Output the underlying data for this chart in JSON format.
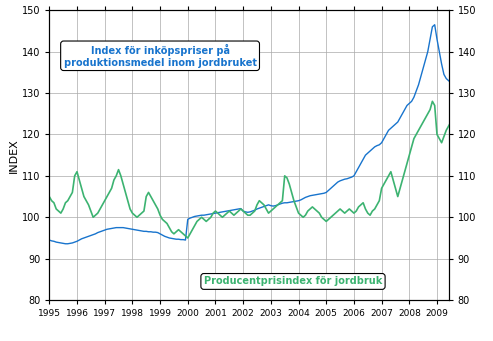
{
  "ylabel_left": "INDEX",
  "ylim": [
    80,
    150
  ],
  "xlim_start": 1995.0,
  "xlim_end": 2009.42,
  "yticks": [
    80,
    90,
    100,
    110,
    120,
    130,
    140,
    150
  ],
  "xtick_years": [
    1995,
    1996,
    1997,
    1998,
    1999,
    2000,
    2001,
    2002,
    2003,
    2004,
    2005,
    2006,
    2007,
    2008,
    2009
  ],
  "blue_color": "#1874CD",
  "green_color": "#3CB371",
  "background_color": "#FFFFFF",
  "grid_color": "#AAAAAA",
  "annotation_blue": "Index för inköpspriser på\nproduktionsmedel inom jordbruket",
  "annotation_green": "Producentprisindex för jordbruk",
  "blue_data": [
    94.5,
    94.3,
    94.2,
    94.0,
    93.9,
    93.8,
    93.7,
    93.6,
    93.6,
    93.7,
    93.8,
    94.0,
    94.2,
    94.5,
    94.8,
    95.0,
    95.2,
    95.4,
    95.6,
    95.8,
    96.0,
    96.3,
    96.5,
    96.7,
    96.9,
    97.1,
    97.2,
    97.3,
    97.4,
    97.5,
    97.5,
    97.5,
    97.5,
    97.4,
    97.3,
    97.2,
    97.1,
    97.0,
    96.9,
    96.8,
    96.7,
    96.6,
    96.6,
    96.5,
    96.5,
    96.4,
    96.4,
    96.3,
    96.0,
    95.7,
    95.4,
    95.2,
    95.0,
    94.9,
    94.8,
    94.7,
    94.7,
    94.6,
    94.6,
    94.5,
    99.5,
    99.8,
    100.0,
    100.2,
    100.3,
    100.4,
    100.5,
    100.5,
    100.6,
    100.7,
    100.8,
    100.9,
    101.0,
    101.1,
    101.2,
    101.3,
    101.4,
    101.5,
    101.6,
    101.7,
    101.8,
    101.9,
    102.0,
    102.1,
    101.5,
    101.3,
    101.2,
    101.3,
    101.5,
    101.7,
    102.0,
    102.2,
    102.4,
    102.6,
    102.8,
    103.0,
    102.8,
    102.7,
    102.8,
    103.0,
    103.2,
    103.4,
    103.5,
    103.5,
    103.6,
    103.7,
    103.8,
    103.9,
    104.0,
    104.2,
    104.5,
    104.8,
    105.0,
    105.2,
    105.3,
    105.4,
    105.5,
    105.6,
    105.7,
    105.8,
    106.0,
    106.5,
    107.0,
    107.5,
    108.0,
    108.5,
    108.8,
    109.0,
    109.2,
    109.3,
    109.5,
    109.7,
    110.0,
    111.0,
    112.0,
    113.0,
    114.0,
    115.0,
    115.5,
    116.0,
    116.5,
    117.0,
    117.3,
    117.5,
    118.0,
    119.0,
    120.0,
    121.0,
    121.5,
    122.0,
    122.5,
    123.0,
    124.0,
    125.0,
    126.0,
    127.0,
    127.5,
    128.0,
    129.0,
    130.5,
    132.0,
    134.0,
    136.0,
    138.0,
    140.0,
    143.0,
    146.0,
    146.5,
    143.0,
    140.0,
    137.0,
    134.5,
    133.5,
    133.0,
    132.5,
    132.0,
    131.5,
    131.0,
    130.5,
    130.0
  ],
  "green_data": [
    105.0,
    104.0,
    103.5,
    102.0,
    101.5,
    101.0,
    102.0,
    103.5,
    104.0,
    105.0,
    106.0,
    110.0,
    111.0,
    109.0,
    107.0,
    105.0,
    104.0,
    103.0,
    101.5,
    100.0,
    100.5,
    101.0,
    102.0,
    103.0,
    104.0,
    105.0,
    106.0,
    107.0,
    109.0,
    110.0,
    111.5,
    110.0,
    108.0,
    106.0,
    104.0,
    102.0,
    101.0,
    100.5,
    100.0,
    100.5,
    101.0,
    101.5,
    105.0,
    106.0,
    105.0,
    104.0,
    103.0,
    102.0,
    100.5,
    99.5,
    99.0,
    98.5,
    97.5,
    96.5,
    96.0,
    96.5,
    97.0,
    96.5,
    96.0,
    95.5,
    95.0,
    96.0,
    97.0,
    98.0,
    99.0,
    99.5,
    100.0,
    99.5,
    99.0,
    99.5,
    100.0,
    101.0,
    101.5,
    101.0,
    100.5,
    100.0,
    100.5,
    101.0,
    101.5,
    101.0,
    100.5,
    101.0,
    101.5,
    102.0,
    101.5,
    101.0,
    100.5,
    100.5,
    101.0,
    101.5,
    103.0,
    104.0,
    103.5,
    103.0,
    102.0,
    101.0,
    101.5,
    102.0,
    102.5,
    103.0,
    103.5,
    104.0,
    110.0,
    109.5,
    108.0,
    106.0,
    104.0,
    102.5,
    101.0,
    100.5,
    100.0,
    100.5,
    101.5,
    102.0,
    102.5,
    102.0,
    101.5,
    101.0,
    100.0,
    99.5,
    99.0,
    99.5,
    100.0,
    100.5,
    101.0,
    101.5,
    102.0,
    101.5,
    101.0,
    101.5,
    102.0,
    101.5,
    101.0,
    101.5,
    102.5,
    103.0,
    103.5,
    102.0,
    101.0,
    100.5,
    101.5,
    102.0,
    103.0,
    104.0,
    107.0,
    108.0,
    109.0,
    110.0,
    111.0,
    109.0,
    107.0,
    105.0,
    107.0,
    109.0,
    111.0,
    113.0,
    115.0,
    117.0,
    119.0,
    120.0,
    121.0,
    122.0,
    123.0,
    124.0,
    125.0,
    126.0,
    128.0,
    127.0,
    120.0,
    119.0,
    118.0,
    119.5,
    121.0,
    122.0,
    123.0,
    122.0,
    121.0,
    120.5,
    120.0,
    120.0
  ]
}
